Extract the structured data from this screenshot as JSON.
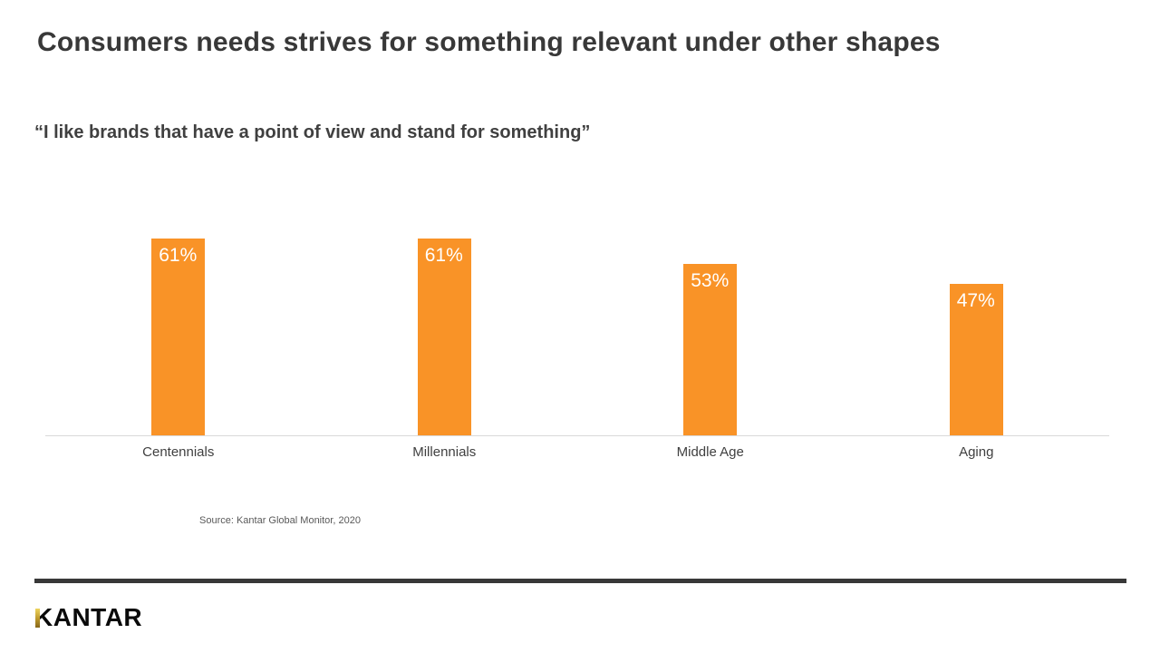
{
  "header": {
    "title": "Consumers needs strives for something relevant under other shapes",
    "quote": "“I like brands that have a point of view and stand for something”"
  },
  "chart_data": {
    "type": "bar",
    "title": "",
    "categories": [
      "Centennials",
      "Millennials",
      "Middle Age",
      "Aging"
    ],
    "values": [
      61,
      61,
      53,
      47
    ],
    "value_labels": [
      "61%",
      "61%",
      "53%",
      "47%"
    ],
    "unit": "%",
    "xlabel": "",
    "ylabel": "",
    "ylim": [
      0,
      72
    ],
    "y_axis_visible": false,
    "gridlines": false,
    "legend": null,
    "bar_color": "#f99327",
    "value_label_color": "#ffffff",
    "baseline_color": "#d9d9d9",
    "category_label_color": "#404040"
  },
  "source": {
    "text": "Source: Kantar Global Monitor, 2020"
  },
  "footer": {
    "logo_text": "KANTAR",
    "divider_color": "#383838",
    "logo_accent_color": "#bb962a"
  }
}
